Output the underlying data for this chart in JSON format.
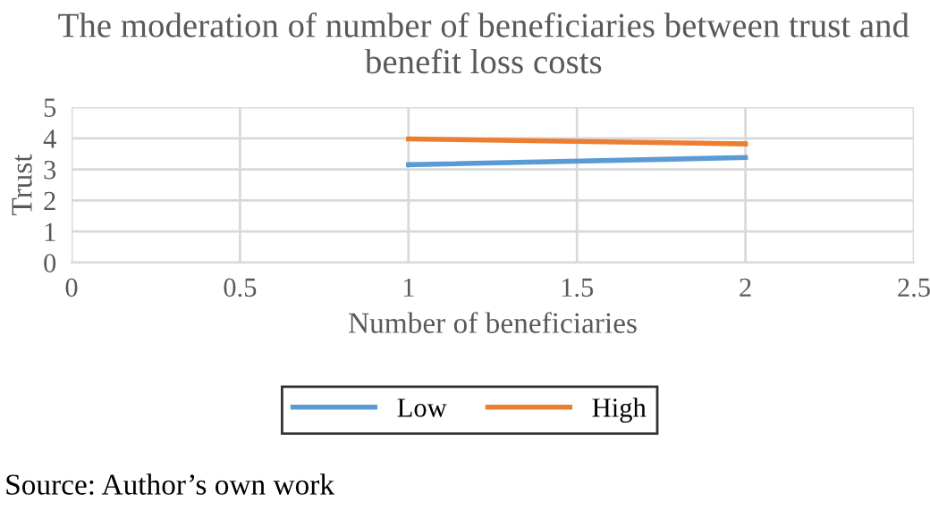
{
  "chart_data": {
    "type": "line",
    "title": "The moderation of number of beneficiaries between trust and benefit loss costs",
    "xlabel": "Number of beneficiaries",
    "ylabel": "Trust",
    "x": [
      1,
      2
    ],
    "series": [
      {
        "name": "Low",
        "color": "#5b9bd5",
        "values": [
          3.15,
          3.38
        ]
      },
      {
        "name": "High",
        "color": "#ed7d31",
        "values": [
          3.98,
          3.82
        ]
      }
    ],
    "xlim": [
      0,
      2.5
    ],
    "xticks": [
      0,
      0.5,
      1,
      1.5,
      2,
      2.5
    ],
    "ylim": [
      0,
      5
    ],
    "yticks": [
      0,
      1,
      2,
      3,
      4,
      5
    ],
    "grid": true,
    "legend": "bottom",
    "marker": "none",
    "line_style": "solid",
    "annotations": [
      "Source: Author’s own work"
    ]
  }
}
